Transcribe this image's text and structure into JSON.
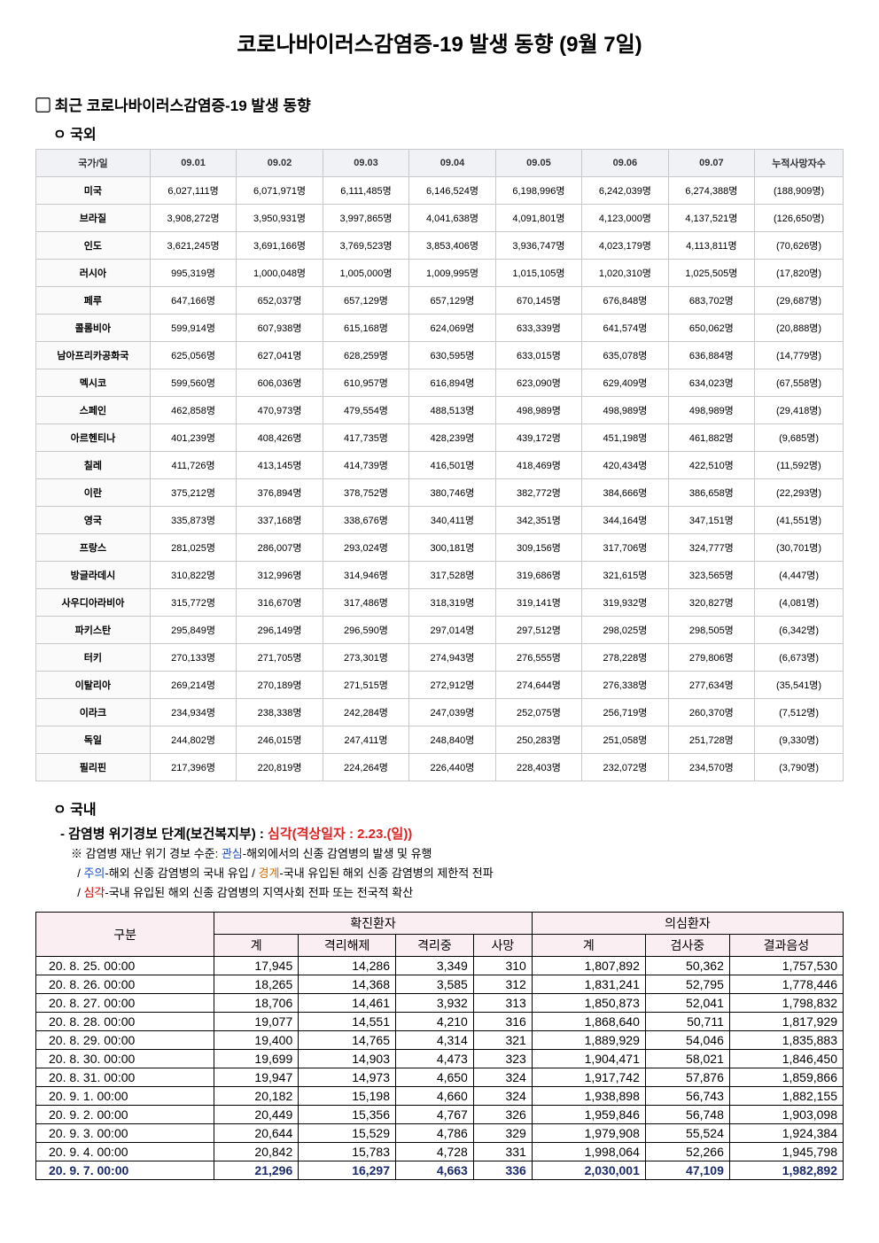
{
  "title": "코로나바이러스감염증-19 발생 동향 (9월 7일)",
  "section_recent": "최근 코로나바이러스감염증-19 발생 동향",
  "sub_foreign": "국외",
  "sub_domestic": "국내",
  "foreign_table": {
    "columns": [
      "국가/일",
      "09.01",
      "09.02",
      "09.03",
      "09.04",
      "09.05",
      "09.06",
      "09.07",
      "누적사망자수"
    ],
    "header_bg": "#f0f2f5",
    "border_color": "#c8c8c8",
    "rows": [
      [
        "미국",
        "6,027,111명",
        "6,071,971명",
        "6,111,485명",
        "6,146,524명",
        "6,198,996명",
        "6,242,039명",
        "6,274,388명",
        "(188,909명)"
      ],
      [
        "브라질",
        "3,908,272명",
        "3,950,931명",
        "3,997,865명",
        "4,041,638명",
        "4,091,801명",
        "4,123,000명",
        "4,137,521명",
        "(126,650명)"
      ],
      [
        "인도",
        "3,621,245명",
        "3,691,166명",
        "3,769,523명",
        "3,853,406명",
        "3,936,747명",
        "4,023,179명",
        "4,113,811명",
        "(70,626명)"
      ],
      [
        "러시아",
        "995,319명",
        "1,000,048명",
        "1,005,000명",
        "1,009,995명",
        "1,015,105명",
        "1,020,310명",
        "1,025,505명",
        "(17,820명)"
      ],
      [
        "페루",
        "647,166명",
        "652,037명",
        "657,129명",
        "657,129명",
        "670,145명",
        "676,848명",
        "683,702명",
        "(29,687명)"
      ],
      [
        "콜롬비아",
        "599,914명",
        "607,938명",
        "615,168명",
        "624,069명",
        "633,339명",
        "641,574명",
        "650,062명",
        "(20,888명)"
      ],
      [
        "남아프리카공화국",
        "625,056명",
        "627,041명",
        "628,259명",
        "630,595명",
        "633,015명",
        "635,078명",
        "636,884명",
        "(14,779명)"
      ],
      [
        "멕시코",
        "599,560명",
        "606,036명",
        "610,957명",
        "616,894명",
        "623,090명",
        "629,409명",
        "634,023명",
        "(67,558명)"
      ],
      [
        "스페인",
        "462,858명",
        "470,973명",
        "479,554명",
        "488,513명",
        "498,989명",
        "498,989명",
        "498,989명",
        "(29,418명)"
      ],
      [
        "아르헨티나",
        "401,239명",
        "408,426명",
        "417,735명",
        "428,239명",
        "439,172명",
        "451,198명",
        "461,882명",
        "(9,685명)"
      ],
      [
        "칠레",
        "411,726명",
        "413,145명",
        "414,739명",
        "416,501명",
        "418,469명",
        "420,434명",
        "422,510명",
        "(11,592명)"
      ],
      [
        "이란",
        "375,212명",
        "376,894명",
        "378,752명",
        "380,746명",
        "382,772명",
        "384,666명",
        "386,658명",
        "(22,293명)"
      ],
      [
        "영국",
        "335,873명",
        "337,168명",
        "338,676명",
        "340,411명",
        "342,351명",
        "344,164명",
        "347,151명",
        "(41,551명)"
      ],
      [
        "프랑스",
        "281,025명",
        "286,007명",
        "293,024명",
        "300,181명",
        "309,156명",
        "317,706명",
        "324,777명",
        "(30,701명)"
      ],
      [
        "방글라데시",
        "310,822명",
        "312,996명",
        "314,946명",
        "317,528명",
        "319,686명",
        "321,615명",
        "323,565명",
        "(4,447명)"
      ],
      [
        "사우디아라비아",
        "315,772명",
        "316,670명",
        "317,486명",
        "318,319명",
        "319,141명",
        "319,932명",
        "320,827명",
        "(4,081명)"
      ],
      [
        "파키스탄",
        "295,849명",
        "296,149명",
        "296,590명",
        "297,014명",
        "297,512명",
        "298,025명",
        "298,505명",
        "(6,342명)"
      ],
      [
        "터키",
        "270,133명",
        "271,705명",
        "273,301명",
        "274,943명",
        "276,555명",
        "278,228명",
        "279,806명",
        "(6,673명)"
      ],
      [
        "이탈리아",
        "269,214명",
        "270,189명",
        "271,515명",
        "272,912명",
        "274,644명",
        "276,338명",
        "277,634명",
        "(35,541명)"
      ],
      [
        "이라크",
        "234,934명",
        "238,338명",
        "242,284명",
        "247,039명",
        "252,075명",
        "256,719명",
        "260,370명",
        "(7,512명)"
      ],
      [
        "독일",
        "244,802명",
        "246,015명",
        "247,411명",
        "248,840명",
        "250,283명",
        "251,058명",
        "251,728명",
        "(9,330명)"
      ],
      [
        "필리핀",
        "217,396명",
        "220,819명",
        "224,264명",
        "226,440명",
        "228,403명",
        "232,072명",
        "234,570명",
        "(3,790명)"
      ]
    ]
  },
  "alert": {
    "prefix": "- 감염병 위기경보 단계(보건복지부) : ",
    "level": "심각(격상일자 : 2.23.(일))",
    "note_prefix": "※ 감염병 재난 위기 경보 수준: ",
    "kw1": "관심",
    "kw1_desc": "-해외에서의 신종 감염병의 발생 및 유행",
    "kw2": "주의",
    "kw2_desc": "-해외 신종 감염병의 국내 유입 / ",
    "kw3": "경계",
    "kw3_desc": "-국내 유입된 해외 신종 감염병의 제한적 전파",
    "kw4": "심각",
    "kw4_desc": "-국내 유입된 해외 신종 감염병의 지역사회 전파 또는 전국적 확산",
    "slash": " / "
  },
  "domestic_table": {
    "header_bg": "#fbeef3",
    "highlight_color": "#1a2a6c",
    "group1": "구분",
    "group2": "확진환자",
    "group3": "의심환자",
    "cols": [
      "계",
      "격리해제",
      "격리중",
      "사망",
      "계",
      "검사중",
      "결과음성"
    ],
    "rows": [
      {
        "date": "20.  8.  25.  00:00",
        "v": [
          "17,945",
          "14,286",
          "3,349",
          "310",
          "1,807,892",
          "50,362",
          "1,757,530"
        ],
        "hl": false
      },
      {
        "date": "20.  8.  26.  00:00",
        "v": [
          "18,265",
          "14,368",
          "3,585",
          "312",
          "1,831,241",
          "52,795",
          "1,778,446"
        ],
        "hl": false
      },
      {
        "date": "20.  8.  27.  00:00",
        "v": [
          "18,706",
          "14,461",
          "3,932",
          "313",
          "1,850,873",
          "52,041",
          "1,798,832"
        ],
        "hl": false
      },
      {
        "date": "20.  8.  28.  00:00",
        "v": [
          "19,077",
          "14,551",
          "4,210",
          "316",
          "1,868,640",
          "50,711",
          "1,817,929"
        ],
        "hl": false
      },
      {
        "date": "20.  8.  29.  00:00",
        "v": [
          "19,400",
          "14,765",
          "4,314",
          "321",
          "1,889,929",
          "54,046",
          "1,835,883"
        ],
        "hl": false
      },
      {
        "date": "20.  8.  30.  00:00",
        "v": [
          "19,699",
          "14,903",
          "4,473",
          "323",
          "1,904,471",
          "58,021",
          "1,846,450"
        ],
        "hl": false
      },
      {
        "date": "20.  8.  31.  00:00",
        "v": [
          "19,947",
          "14,973",
          "4,650",
          "324",
          "1,917,742",
          "57,876",
          "1,859,866"
        ],
        "hl": false
      },
      {
        "date": "20.  9.    1.  00:00",
        "v": [
          "20,182",
          "15,198",
          "4,660",
          "324",
          "1,938,898",
          "56,743",
          "1,882,155"
        ],
        "hl": false
      },
      {
        "date": "20.  9.    2.  00:00",
        "v": [
          "20,449",
          "15,356",
          "4,767",
          "326",
          "1,959,846",
          "56,748",
          "1,903,098"
        ],
        "hl": false
      },
      {
        "date": "20.  9.    3.  00:00",
        "v": [
          "20,644",
          "15,529",
          "4,786",
          "329",
          "1,979,908",
          "55,524",
          "1,924,384"
        ],
        "hl": false
      },
      {
        "date": "20.  9.    4.  00:00",
        "v": [
          "20,842",
          "15,783",
          "4,728",
          "331",
          "1,998,064",
          "52,266",
          "1,945,798"
        ],
        "hl": false
      },
      {
        "date": "20.  9.    7.  00:00",
        "v": [
          "21,296",
          "16,297",
          "4,663",
          "336",
          "2,030,001",
          "47,109",
          "1,982,892"
        ],
        "hl": true
      }
    ]
  }
}
